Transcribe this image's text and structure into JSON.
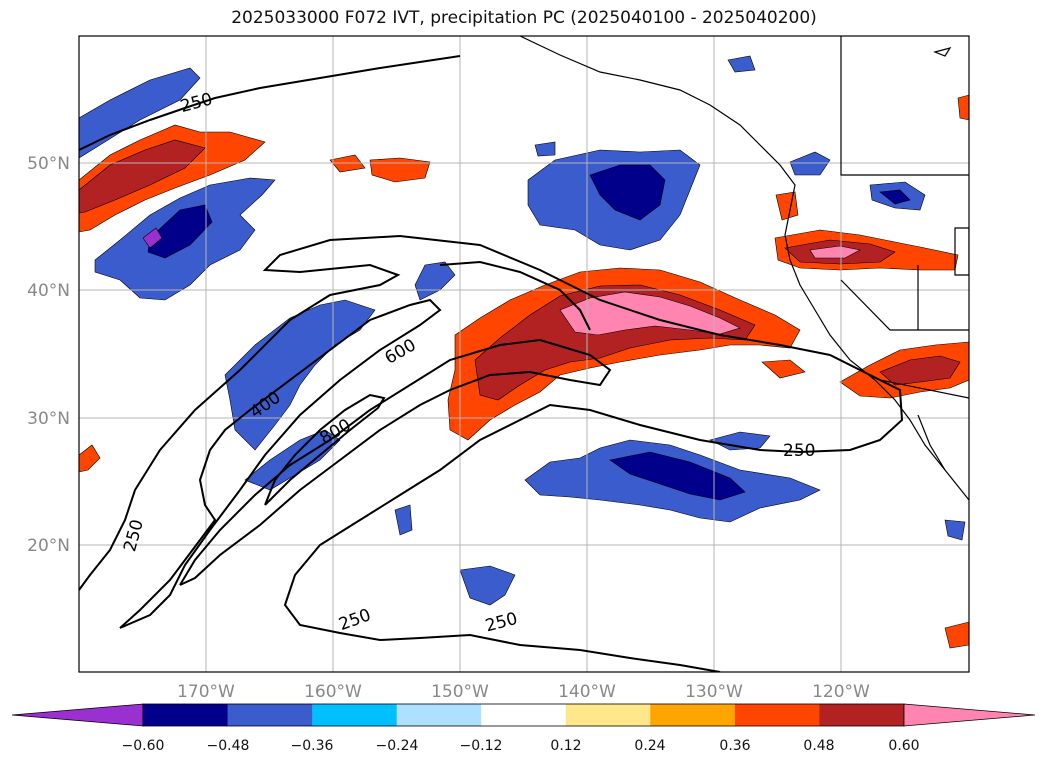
{
  "title": "2025033000 F072 IVT, precipitation PC (2025040100 - 2025040200)",
  "map": {
    "lon_range": [
      -180,
      -110
    ],
    "lat_range": [
      10,
      60
    ],
    "lon_ticks": [
      "170°W",
      "160°W",
      "150°W",
      "140°W",
      "130°W",
      "120°W"
    ],
    "lat_ticks": [
      "50°N",
      "40°N",
      "30°N",
      "20°N"
    ],
    "grid": true
  },
  "ivt_contour_labels": [
    "250",
    "250",
    "250",
    "250",
    "250",
    "400",
    "600",
    "800"
  ],
  "colorbar": {
    "ticks": [
      "−0.60",
      "−0.48",
      "−0.36",
      "−0.24",
      "−0.12",
      "0.12",
      "0.24",
      "0.36",
      "0.48",
      "0.60"
    ],
    "colors": [
      "#9b30d0",
      "#00008b",
      "#3a5ccc",
      "#00bfff",
      "#aee0ff",
      "#ffffff",
      "#ffe88a",
      "#ffa500",
      "#ff4500",
      "#b22222",
      "#ff85b0"
    ],
    "extend": "both"
  }
}
